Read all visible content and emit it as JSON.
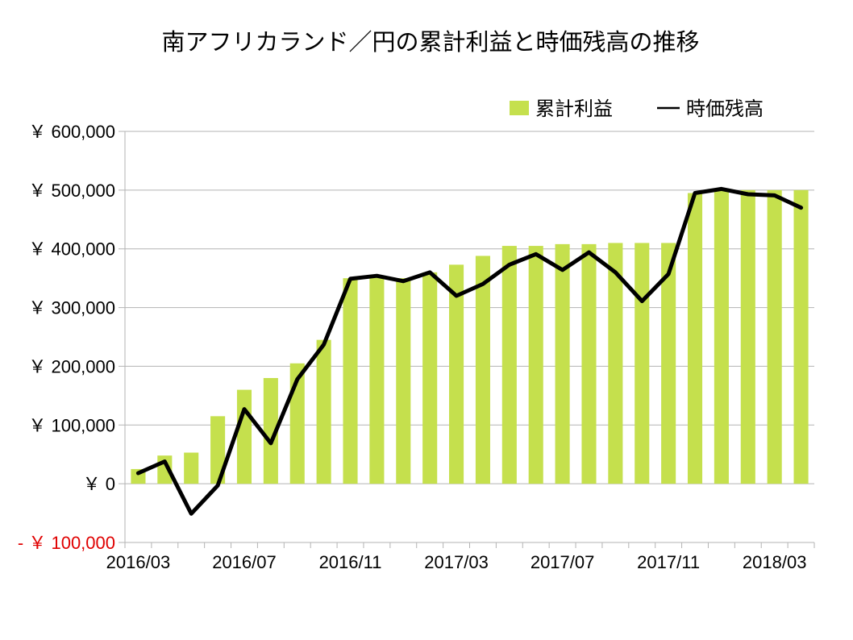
{
  "chart_data": {
    "type": "bar",
    "title": "南アフリカランド／円の累計利益と時価残高の推移",
    "ylim": [
      -100000,
      600000
    ],
    "y_tick_values": [
      -100000,
      0,
      100000,
      200000,
      300000,
      400000,
      500000,
      600000
    ],
    "y_tick_labels": [
      "- ￥ 100,000",
      "￥ 0",
      "￥ 100,000",
      "￥ 200,000",
      "￥ 300,000",
      "￥ 400,000",
      "￥ 500,000",
      "￥ 600,000"
    ],
    "x_tick_labels": [
      "2016/03",
      "2016/07",
      "2016/11",
      "2017/03",
      "2017/07",
      "2017/11",
      "2018/03"
    ],
    "categories": [
      "2016/03",
      "2016/04",
      "2016/05",
      "2016/06",
      "2016/07",
      "2016/08",
      "2016/09",
      "2016/10",
      "2016/11",
      "2016/12",
      "2017/01",
      "2017/02",
      "2017/03",
      "2017/04",
      "2017/05",
      "2017/06",
      "2017/07",
      "2017/08",
      "2017/09",
      "2017/10",
      "2017/11",
      "2017/12",
      "2018/01",
      "2018/02",
      "2018/03",
      "2018/04"
    ],
    "series": [
      {
        "name": "累計利益",
        "type": "bar",
        "color": "#c5e04d",
        "values": [
          25000,
          48000,
          53000,
          115000,
          160000,
          180000,
          205000,
          245000,
          350000,
          352000,
          350000,
          360000,
          373000,
          388000,
          405000,
          405000,
          408000,
          408000,
          410000,
          410000,
          410000,
          495000,
          500000,
          500000,
          500000,
          500000
        ]
      },
      {
        "name": "時価残高",
        "type": "line",
        "color": "#000000",
        "values": [
          18000,
          38000,
          -51000,
          -3000,
          127000,
          69000,
          178000,
          237000,
          349000,
          354000,
          345000,
          360000,
          320000,
          340000,
          373000,
          391000,
          364000,
          394000,
          360000,
          311000,
          357000,
          495000,
          502000,
          493000,
          491000,
          470000
        ]
      }
    ],
    "legend_position": "top-right",
    "grid": true
  }
}
